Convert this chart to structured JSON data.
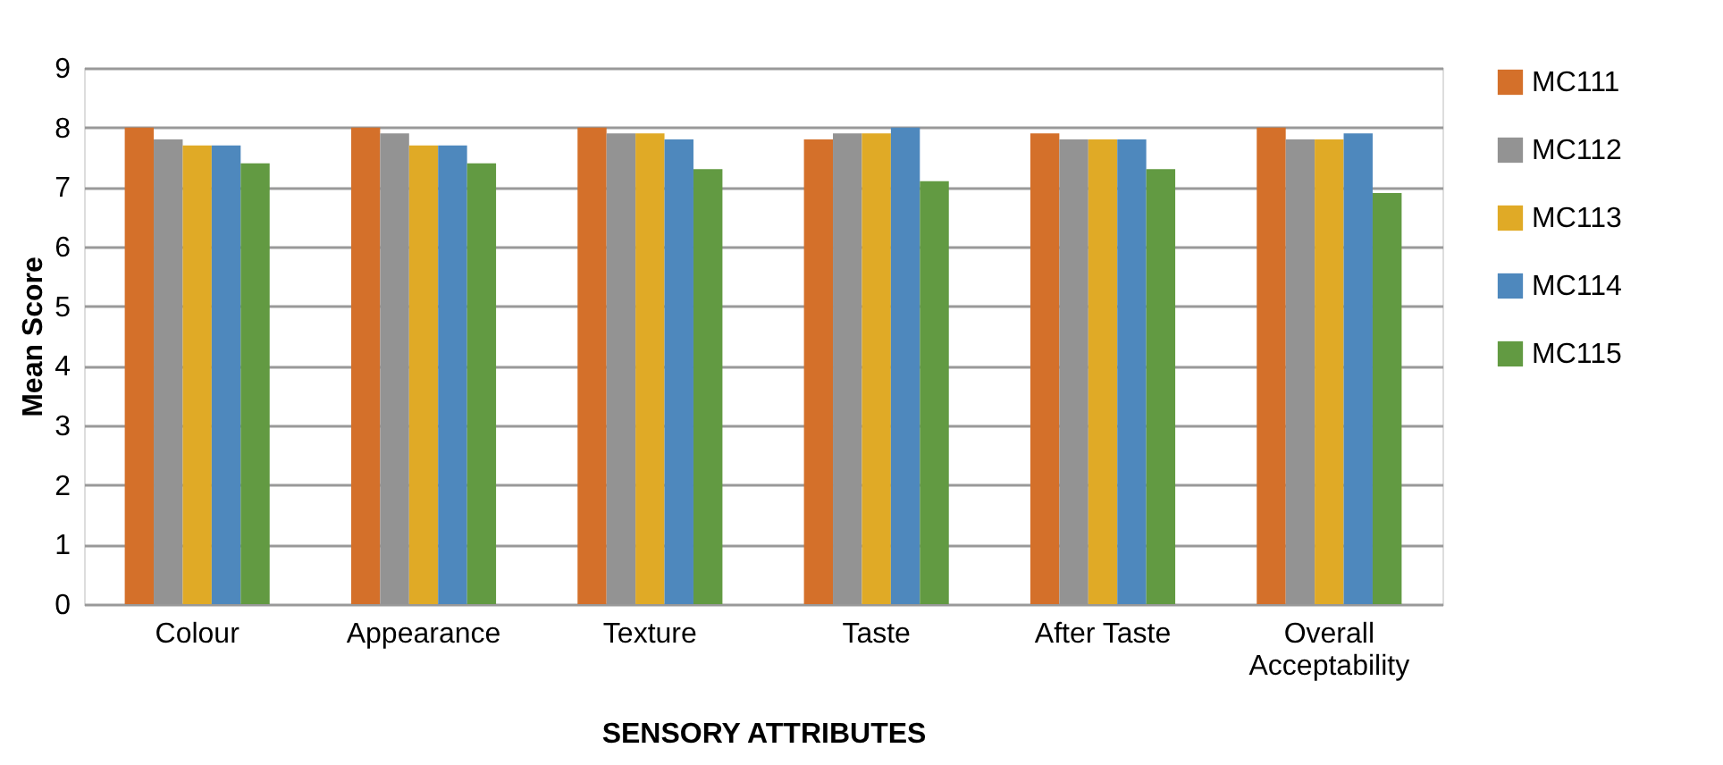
{
  "chart_data": {
    "type": "bar",
    "xlabel": "SENSORY ATTRIBUTES",
    "ylabel": "Mean Score",
    "categories": [
      "Colour",
      "Appearance",
      "Texture",
      "Taste",
      "After Taste",
      "Overall Acceptability"
    ],
    "series": [
      {
        "name": "MC111",
        "color": "#d4702a",
        "values": [
          8,
          8,
          8,
          7.8,
          7.9,
          8
        ]
      },
      {
        "name": "MC112",
        "color": "#939393",
        "values": [
          7.8,
          7.9,
          7.9,
          7.9,
          7.8,
          7.8
        ]
      },
      {
        "name": "MC113",
        "color": "#e0aa26",
        "values": [
          7.7,
          7.7,
          7.9,
          7.9,
          7.8,
          7.8
        ]
      },
      {
        "name": "MC114",
        "color": "#4e88bd",
        "values": [
          7.7,
          7.7,
          7.8,
          8,
          7.8,
          7.9
        ]
      },
      {
        "name": "MC115",
        "color": "#629a42",
        "values": [
          7.4,
          7.4,
          7.3,
          7.1,
          7.3,
          6.9
        ]
      }
    ],
    "ylim": [
      0,
      9
    ],
    "yticks": [
      0,
      1,
      2,
      3,
      4,
      5,
      6,
      7,
      8,
      9
    ],
    "grid": "y",
    "legend": "right"
  }
}
